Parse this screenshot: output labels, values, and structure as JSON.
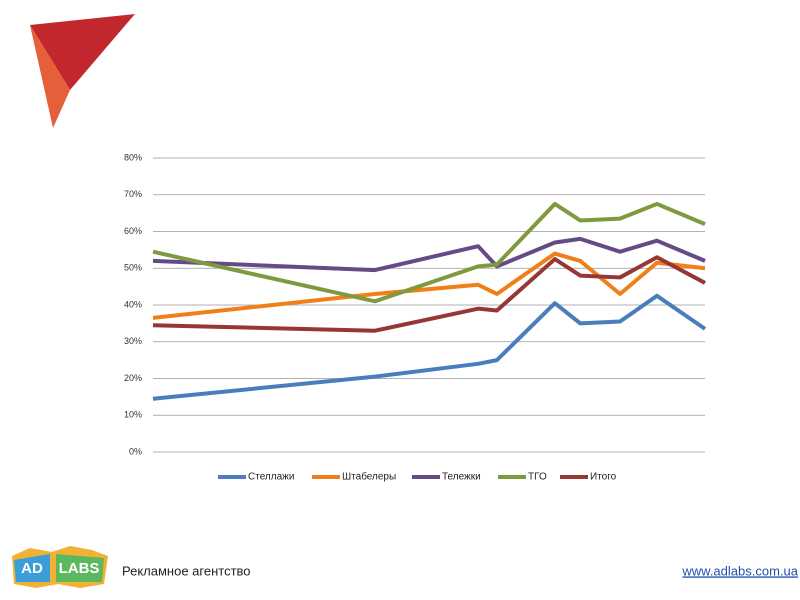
{
  "chart_data": {
    "type": "line",
    "categories": [
      null,
      null,
      null,
      null,
      null,
      null,
      null,
      null,
      null
    ],
    "series": [
      {
        "name": "Стеллажи",
        "color": "#4a7ebb",
        "values": [
          14.5,
          20.5,
          24,
          25,
          40.5,
          35,
          35.5,
          42.5,
          33.5
        ]
      },
      {
        "name": "Штабелеры",
        "color": "#f07f1a",
        "values": [
          36.5,
          43,
          45.5,
          43,
          54,
          52,
          43,
          51.5,
          50
        ]
      },
      {
        "name": "Тележки",
        "color": "#664a86",
        "values": [
          52,
          49.5,
          56,
          50.5,
          57,
          58,
          54.5,
          57.5,
          52
        ]
      },
      {
        "name": "ТГО",
        "color": "#7f9a3e",
        "values": [
          54.5,
          41,
          50.5,
          51,
          67.5,
          63,
          63.5,
          67.5,
          62
        ]
      },
      {
        "name": "Итого",
        "color": "#953735",
        "values": [
          34.5,
          33,
          39,
          38.5,
          52.5,
          48,
          47.5,
          53,
          46
        ]
      }
    ],
    "ylim": [
      0,
      80
    ],
    "yticks": [
      {
        "value": 0,
        "label": "0%"
      },
      {
        "value": 10,
        "label": "10%"
      },
      {
        "value": 20,
        "label": "20%"
      },
      {
        "value": 30,
        "label": "30%"
      },
      {
        "value": 40,
        "label": "40%"
      },
      {
        "value": 50,
        "label": "50%"
      },
      {
        "value": 60,
        "label": "60%"
      },
      {
        "value": 70,
        "label": "70%"
      },
      {
        "value": 80,
        "label": "80%"
      }
    ],
    "grid": true,
    "legend": "bottom"
  },
  "footer": {
    "logo_left": "AD",
    "logo_right": "LABS",
    "caption": "Рекламное агентство",
    "url": "www.adlabs.com.ua"
  }
}
